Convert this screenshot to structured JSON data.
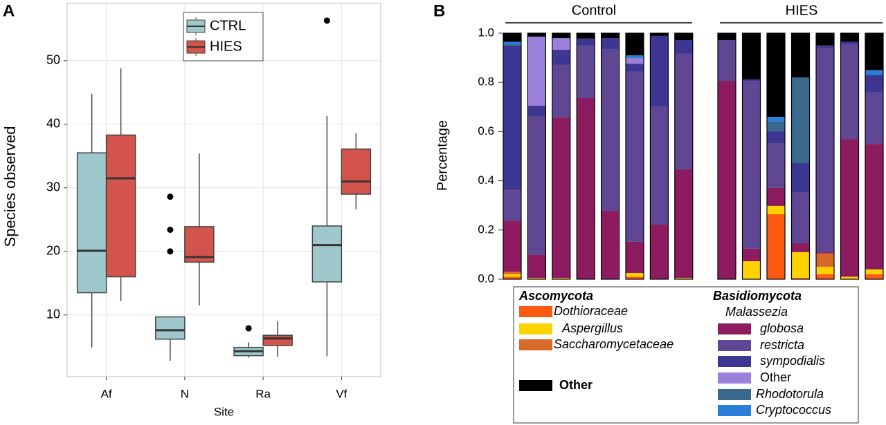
{
  "chart_data": [
    {
      "type": "box",
      "panel_label": "A",
      "x_label": "Site",
      "y_label": "Species observed",
      "categories": [
        "Af",
        "N",
        "Ra",
        "Vf"
      ],
      "ylim": [
        0.3,
        59
      ],
      "yticks": [
        10,
        20,
        30,
        40,
        50
      ],
      "grid": true,
      "legend_position": "top",
      "series": [
        {
          "name": "CTRL",
          "color": "#9ec8cb",
          "min": [
            4.9,
            2.8,
            3.3,
            3.5
          ],
          "q1": [
            13.5,
            6.2,
            3.6,
            15.2
          ],
          "median": [
            20.1,
            7.6,
            4.3,
            21.0
          ],
          "q3": [
            35.5,
            9.7,
            4.9,
            24.0
          ],
          "max": [
            44.8,
            9.7,
            5.7,
            41.3
          ],
          "outliers": [
            [],
            [
              28.6,
              23.4,
              20.0
            ],
            [
              7.9
            ],
            [
              56.3
            ]
          ]
        },
        {
          "name": "HIES",
          "color": "#d3544c",
          "min": [
            12.2,
            11.5,
            3.4,
            26.6
          ],
          "q1": [
            16.0,
            18.3,
            5.2,
            29.0
          ],
          "median": [
            31.5,
            19.1,
            6.3,
            31.0
          ],
          "q3": [
            38.3,
            23.9,
            6.8,
            36.1
          ],
          "max": [
            48.8,
            35.4,
            9.0,
            38.6
          ],
          "outliers": [
            [],
            [],
            [],
            []
          ]
        }
      ]
    },
    {
      "type": "stacked_bar",
      "panel_label": "B",
      "y_label": "Percentage",
      "annotations": [
        "Control",
        "HIES"
      ],
      "legend_headings": [
        "Ascomycota",
        "Basidiomycota",
        "Malassezia"
      ],
      "categories": [
        null,
        null,
        null,
        null,
        null,
        null,
        null,
        null,
        null,
        null,
        null,
        null,
        null,
        null,
        null
      ],
      "ylim": [
        0,
        1
      ],
      "yticks": [
        {
          "value": 0,
          "label": "0.0"
        },
        0.2,
        0.4,
        0.6,
        0.8,
        {
          "value": 1,
          "label": "1.0"
        }
      ],
      "series": [
        {
          "name": "Dothioraceae",
          "color": "#ff5a14",
          "values": [
            0.01,
            0,
            0,
            0,
            0,
            0.01,
            0,
            0,
            0,
            0,
            0.264,
            0.005,
            0.02,
            0,
            0.02
          ]
        },
        {
          "name": "Aspergillus",
          "color": "#ffd200",
          "values": [
            0.01,
            0.005,
            0.005,
            0,
            0,
            0.015,
            0,
            0.005,
            0,
            0.073,
            0.034,
            0.105,
            0.03,
            0.01,
            0.02
          ]
        },
        {
          "name": "Saccharomycetaceae",
          "color": "#d76a2a",
          "values": [
            0.01,
            0,
            0,
            0,
            0,
            0,
            0,
            0,
            0,
            0,
            0,
            0,
            0.055,
            0,
            0
          ]
        },
        {
          "name": "globosa",
          "color": "#8c1b5f",
          "values": [
            0.206,
            0.095,
            0.652,
            0.736,
            0.278,
            0.127,
            0.222,
            0.442,
            0.806,
            0.051,
            0.073,
            0.036,
            0.005,
            0.56,
            0.51
          ]
        },
        {
          "name": "restricta",
          "color": "#5f4794",
          "values": [
            0.126,
            0.563,
            0.214,
            0.213,
            0.655,
            0.691,
            0.48,
            0.469,
            0.166,
            0.682,
            0.18,
            0.208,
            0.83,
            0.385,
            0.21
          ]
        },
        {
          "name": "sympodialis",
          "color": "#3d3692",
          "values": [
            0.588,
            0.042,
            0.062,
            0.029,
            0.047,
            0.033,
            0.287,
            0.056,
            0,
            0.006,
            0.05,
            0.118,
            0.01,
            0.01,
            0.07
          ]
        },
        {
          "name": "Other",
          "color": "#9b80dc",
          "values": [
            0,
            0.281,
            0.047,
            0,
            0,
            0.023,
            0,
            0,
            0,
            0,
            0,
            0,
            0,
            0,
            0
          ]
        },
        {
          "name": "Rhodotorula",
          "color": "#396a8d",
          "values": [
            0.005,
            0,
            0,
            0,
            0,
            0,
            0,
            0,
            0,
            0,
            0.04,
            0.348,
            0,
            0,
            0
          ]
        },
        {
          "name": "Cryptococcus",
          "color": "#2a7fd8",
          "values": [
            0.01,
            0,
            0,
            0,
            0,
            0.011,
            0,
            0,
            0,
            0,
            0.019,
            0,
            0,
            0,
            0.02
          ]
        },
        {
          "name": "Other",
          "color": "#000000",
          "values": [
            0.035,
            0.014,
            0.02,
            0.022,
            0.02,
            0.09,
            0.011,
            0.028,
            0.028,
            0.188,
            0.34,
            0.18,
            0.05,
            0.035,
            0.15
          ]
        }
      ]
    }
  ]
}
